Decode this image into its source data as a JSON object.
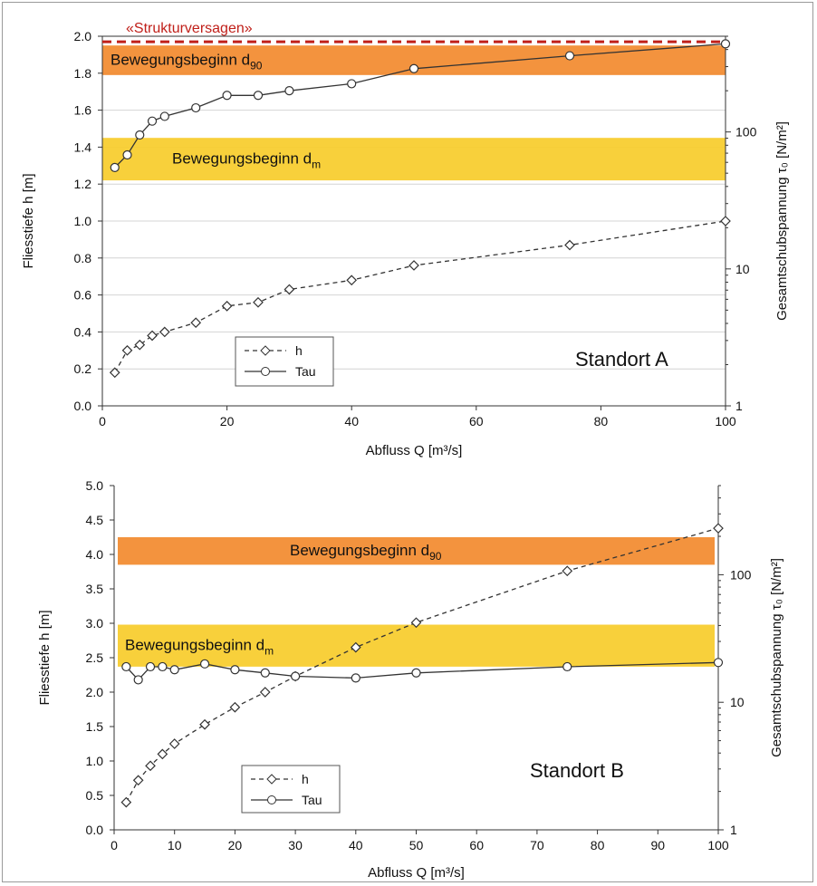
{
  "chart_data": [
    {
      "type": "line",
      "title": "",
      "site_label": "Standort A",
      "xlabel": "Abfluss Q [m³/s]",
      "ylabel": "Fliesstiefe h [m]",
      "y2label": "Gesamtschubspannung τ₀ [N/m²]",
      "xlim": [
        0,
        100
      ],
      "ylim": [
        0,
        2.0
      ],
      "y2lim": [
        1,
        500
      ],
      "y2scale": "log",
      "xticks": [
        "0",
        "20",
        "40",
        "60",
        "80",
        "100"
      ],
      "yticks": [
        "0.0",
        "0.2",
        "0.4",
        "0.6",
        "0.8",
        "1.0",
        "1.2",
        "1.4",
        "1.6",
        "1.8",
        "2.0"
      ],
      "y2ticks": [
        "1",
        "10",
        "100"
      ],
      "grid": "horizontal",
      "legend": "bottom-left",
      "annotations": {
        "strukturversagen": "«Strukturversagen»",
        "band_d90": "Bewegungsbeginn d90",
        "band_dm": "Bewegungsbeginn dm"
      },
      "bands": [
        {
          "name": "Bewegungsbeginn d90",
          "y": [
            1.79,
            1.95
          ],
          "color": "#f28a2e"
        },
        {
          "name": "Bewegungsbeginn dm",
          "y": [
            1.22,
            1.45
          ],
          "color": "#f7cc2a"
        }
      ],
      "series": [
        {
          "name": "h",
          "axis": "left",
          "style": "dashed",
          "marker": "diamond",
          "x": [
            2,
            4,
            6,
            8,
            10,
            15,
            20,
            25,
            30,
            40,
            50,
            75,
            100
          ],
          "y": [
            0.18,
            0.3,
            0.33,
            0.38,
            0.4,
            0.45,
            0.54,
            0.56,
            0.63,
            0.68,
            0.76,
            0.87,
            1.0
          ]
        },
        {
          "name": "Tau",
          "axis": "right",
          "style": "solid",
          "marker": "circle",
          "x": [
            2,
            4,
            6,
            8,
            10,
            15,
            20,
            25,
            30,
            40,
            50,
            75,
            100
          ],
          "y": [
            55,
            68,
            95,
            120,
            130,
            150,
            185,
            185,
            200,
            225,
            290,
            360,
            440
          ]
        }
      ],
      "strukturversagen_y": 1.97,
      "colors": {
        "h": "#333333",
        "Tau": "#333333",
        "strukt": "#c0201a",
        "tau_in_band": "#d68a0c"
      }
    },
    {
      "type": "line",
      "title": "",
      "site_label": "Standort B",
      "xlabel": "Abfluss Q [m³/s]",
      "ylabel": "Fliesstiefe h [m]",
      "y2label": "Gesamtschubspannung τ₀ [N/m²]",
      "xlim": [
        0,
        100
      ],
      "ylim": [
        0,
        5.0
      ],
      "y2lim": [
        1,
        500
      ],
      "y2scale": "log",
      "xticks": [
        "0",
        "10",
        "20",
        "30",
        "40",
        "50",
        "60",
        "70",
        "80",
        "90",
        "100"
      ],
      "yticks": [
        "0.0",
        "0.5",
        "1.0",
        "1.5",
        "2.0",
        "2.5",
        "3.0",
        "3.5",
        "4.0",
        "4.5",
        "5.0"
      ],
      "y2ticks": [
        "1",
        "10",
        "100"
      ],
      "grid": "none",
      "legend": "bottom-left",
      "annotations": {
        "band_d90": "Bewegungsbeginn d90",
        "band_dm": "Bewegungsbeginn dm"
      },
      "bands": [
        {
          "name": "Bewegungsbeginn d90",
          "y": [
            3.85,
            4.25
          ],
          "color": "#f28a2e"
        },
        {
          "name": "Bewegungsbeginn dm",
          "y": [
            2.37,
            2.98
          ],
          "color": "#f7cc2a"
        }
      ],
      "series": [
        {
          "name": "h",
          "axis": "left",
          "style": "dashed",
          "marker": "diamond",
          "x": [
            2,
            4,
            6,
            8,
            10,
            15,
            20,
            25,
            30,
            40,
            50,
            75,
            100
          ],
          "y": [
            0.4,
            0.72,
            0.93,
            1.1,
            1.25,
            1.53,
            1.78,
            2.0,
            2.23,
            2.65,
            3.01,
            3.76,
            4.38
          ]
        },
        {
          "name": "Tau",
          "axis": "right",
          "style": "solid",
          "marker": "circle",
          "x": [
            2,
            4,
            6,
            8,
            10,
            15,
            20,
            25,
            30,
            40,
            50,
            75,
            100
          ],
          "y": [
            19,
            15,
            19,
            19,
            18,
            20,
            18,
            17,
            16,
            15.5,
            17,
            19,
            20.5
          ]
        }
      ],
      "colors": {
        "h": "#333333",
        "Tau": "#333333",
        "h_in_band": "#d68a0c"
      }
    }
  ]
}
